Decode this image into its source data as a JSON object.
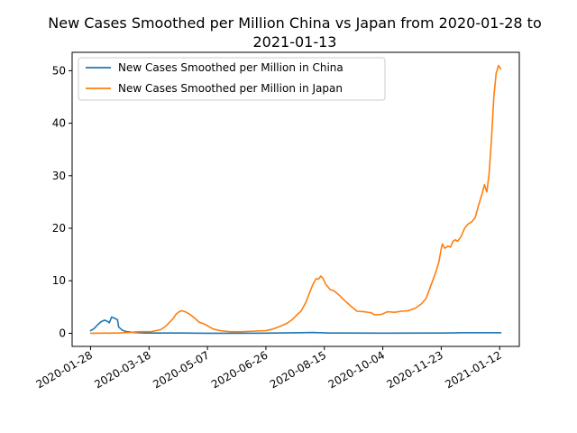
{
  "chart_data": {
    "type": "line",
    "title": "New Cases Smoothed per Million China vs Japan from 2020-01-28 to 2021-01-13",
    "title_lines": [
      "New Cases Smoothed per Million China vs Japan from 2020-01-28 to",
      "2021-01-13"
    ],
    "xlabel": "",
    "ylabel": "",
    "x_range": [
      "2020-01-28",
      "2021-01-13"
    ],
    "ylim": [
      -2.5,
      53.5
    ],
    "x_ticks": [
      "2020-01-28",
      "2020-03-18",
      "2020-05-07",
      "2020-06-26",
      "2020-08-15",
      "2020-10-04",
      "2020-11-23",
      "2021-01-12"
    ],
    "y_ticks": [
      0,
      10,
      20,
      30,
      40,
      50
    ],
    "grid": false,
    "legend_position": "top-left",
    "series": [
      {
        "name": "New Cases Smoothed per Million in China",
        "color": "#1f77b4",
        "points": [
          [
            "2020-01-28",
            0.5
          ],
          [
            "2020-01-31",
            0.9
          ],
          [
            "2020-02-03",
            1.6
          ],
          [
            "2020-02-06",
            2.2
          ],
          [
            "2020-02-09",
            2.5
          ],
          [
            "2020-02-12",
            2.2
          ],
          [
            "2020-02-13",
            2.0
          ],
          [
            "2020-02-15",
            3.1
          ],
          [
            "2020-02-18",
            2.8
          ],
          [
            "2020-02-20",
            2.6
          ],
          [
            "2020-02-21",
            1.2
          ],
          [
            "2020-02-24",
            0.6
          ],
          [
            "2020-02-28",
            0.3
          ],
          [
            "2020-03-05",
            0.15
          ],
          [
            "2020-03-15",
            0.05
          ],
          [
            "2020-04-15",
            0.05
          ],
          [
            "2020-05-07",
            0.0
          ],
          [
            "2020-06-26",
            0.02
          ],
          [
            "2020-07-25",
            0.1
          ],
          [
            "2020-08-05",
            0.15
          ],
          [
            "2020-08-20",
            0.05
          ],
          [
            "2020-10-04",
            0.02
          ],
          [
            "2020-11-23",
            0.05
          ],
          [
            "2020-12-10",
            0.1
          ],
          [
            "2021-01-13",
            0.1
          ]
        ]
      },
      {
        "name": "New Cases Smoothed per Million in Japan",
        "color": "#ff7f0e",
        "points": [
          [
            "2020-01-28",
            0.0
          ],
          [
            "2020-02-20",
            0.05
          ],
          [
            "2020-03-01",
            0.15
          ],
          [
            "2020-03-10",
            0.3
          ],
          [
            "2020-03-20",
            0.3
          ],
          [
            "2020-03-28",
            0.7
          ],
          [
            "2020-04-01",
            1.3
          ],
          [
            "2020-04-05",
            2.2
          ],
          [
            "2020-04-08",
            2.9
          ],
          [
            "2020-04-10",
            3.6
          ],
          [
            "2020-04-12",
            4.0
          ],
          [
            "2020-04-15",
            4.3
          ],
          [
            "2020-04-18",
            4.1
          ],
          [
            "2020-04-22",
            3.6
          ],
          [
            "2020-04-26",
            2.9
          ],
          [
            "2020-04-30",
            2.1
          ],
          [
            "2020-05-04",
            1.8
          ],
          [
            "2020-05-08",
            1.3
          ],
          [
            "2020-05-12",
            0.8
          ],
          [
            "2020-05-18",
            0.5
          ],
          [
            "2020-05-26",
            0.3
          ],
          [
            "2020-06-05",
            0.3
          ],
          [
            "2020-06-15",
            0.4
          ],
          [
            "2020-06-26",
            0.5
          ],
          [
            "2020-07-02",
            0.8
          ],
          [
            "2020-07-08",
            1.3
          ],
          [
            "2020-07-14",
            1.9
          ],
          [
            "2020-07-18",
            2.5
          ],
          [
            "2020-07-22",
            3.4
          ],
          [
            "2020-07-26",
            4.2
          ],
          [
            "2020-07-30",
            5.8
          ],
          [
            "2020-08-02",
            7.5
          ],
          [
            "2020-08-05",
            9.2
          ],
          [
            "2020-08-08",
            10.4
          ],
          [
            "2020-08-10",
            10.3
          ],
          [
            "2020-08-12",
            10.9
          ],
          [
            "2020-08-14",
            10.4
          ],
          [
            "2020-08-16",
            9.4
          ],
          [
            "2020-08-20",
            8.3
          ],
          [
            "2020-08-23",
            8.1
          ],
          [
            "2020-08-28",
            7.2
          ],
          [
            "2020-09-02",
            6.1
          ],
          [
            "2020-09-07",
            5.1
          ],
          [
            "2020-09-12",
            4.2
          ],
          [
            "2020-09-18",
            4.1
          ],
          [
            "2020-09-24",
            3.9
          ],
          [
            "2020-09-27",
            3.5
          ],
          [
            "2020-10-03",
            3.6
          ],
          [
            "2020-10-08",
            4.1
          ],
          [
            "2020-10-14",
            4.0
          ],
          [
            "2020-10-20",
            4.2
          ],
          [
            "2020-10-26",
            4.3
          ],
          [
            "2020-11-01",
            4.8
          ],
          [
            "2020-11-06",
            5.6
          ],
          [
            "2020-11-10",
            6.6
          ],
          [
            "2020-11-14",
            9.0
          ],
          [
            "2020-11-18",
            11.4
          ],
          [
            "2020-11-21",
            13.6
          ],
          [
            "2020-11-23",
            16.1
          ],
          [
            "2020-11-24",
            17.0
          ],
          [
            "2020-11-26",
            16.2
          ],
          [
            "2020-11-29",
            16.6
          ],
          [
            "2020-12-01",
            16.4
          ],
          [
            "2020-12-03",
            17.5
          ],
          [
            "2020-12-05",
            17.8
          ],
          [
            "2020-12-07",
            17.5
          ],
          [
            "2020-12-10",
            18.4
          ],
          [
            "2020-12-13",
            20.0
          ],
          [
            "2020-12-16",
            20.8
          ],
          [
            "2020-12-19",
            21.2
          ],
          [
            "2020-12-22",
            22.0
          ],
          [
            "2020-12-25",
            24.4
          ],
          [
            "2020-12-28",
            26.6
          ],
          [
            "2020-12-30",
            28.3
          ],
          [
            "2021-01-01",
            26.9
          ],
          [
            "2021-01-03",
            30.5
          ],
          [
            "2021-01-05",
            37.0
          ],
          [
            "2021-01-07",
            45.0
          ],
          [
            "2021-01-09",
            49.5
          ],
          [
            "2021-01-11",
            51.0
          ],
          [
            "2021-01-13",
            50.3
          ]
        ]
      }
    ]
  }
}
